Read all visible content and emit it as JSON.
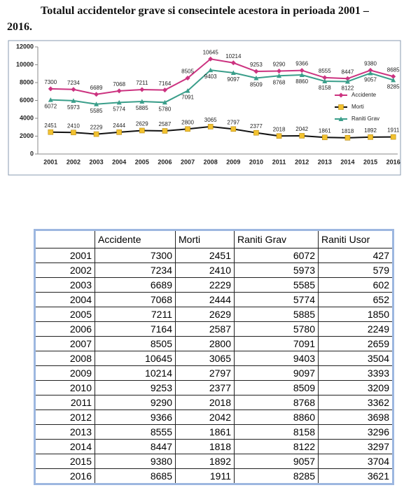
{
  "title": "Totalul accidentelor grave si consecintele acestora in perioada 2001 – 2016.",
  "chart_data": {
    "type": "line",
    "categories": [
      "2001",
      "2002",
      "2003",
      "2004",
      "2005",
      "2006",
      "2007",
      "2008",
      "2009",
      "2010",
      "2011",
      "2012",
      "2013",
      "2014",
      "2015",
      "2016"
    ],
    "series": [
      {
        "name": "Accidente",
        "color": "#cc3380",
        "marker": "diamond",
        "values": [
          7300,
          7234,
          6689,
          7068,
          7211,
          7164,
          8505,
          10645,
          10214,
          9253,
          9290,
          9366,
          8555,
          8447,
          9380,
          8685
        ]
      },
      {
        "name": "Morti",
        "color": "#111111",
        "marker_color": "#f2c230",
        "marker": "square",
        "values": [
          2451,
          2410,
          2229,
          2444,
          2629,
          2587,
          2800,
          3065,
          2797,
          2377,
          2018,
          2042,
          1861,
          1818,
          1892,
          1911
        ]
      },
      {
        "name": "Raniti Grav",
        "color": "#3a9e8a",
        "marker": "triangle",
        "values": [
          6072,
          5973,
          5585,
          5774,
          5885,
          5780,
          7091,
          9403,
          9097,
          8509,
          8768,
          8860,
          8158,
          8122,
          9057,
          8285
        ]
      }
    ],
    "ylim": [
      0,
      12000
    ],
    "yticks": [
      0,
      2000,
      4000,
      6000,
      8000,
      10000,
      12000
    ],
    "grid": false,
    "legend": "right"
  },
  "table": {
    "header": [
      "Accidente",
      "Morti",
      "Raniti Grav",
      "Raniti Usor"
    ],
    "rows": [
      [
        2001,
        7300,
        2451,
        6072,
        427
      ],
      [
        2002,
        7234,
        2410,
        5973,
        579
      ],
      [
        2003,
        6689,
        2229,
        5585,
        602
      ],
      [
        2004,
        7068,
        2444,
        5774,
        652
      ],
      [
        2005,
        7211,
        2629,
        5885,
        1850
      ],
      [
        2006,
        7164,
        2587,
        5780,
        2249
      ],
      [
        2007,
        8505,
        2800,
        7091,
        2659
      ],
      [
        2008,
        10645,
        3065,
        9403,
        3504
      ],
      [
        2009,
        10214,
        2797,
        9097,
        3393
      ],
      [
        2010,
        9253,
        2377,
        8509,
        3209
      ],
      [
        2011,
        9290,
        2018,
        8768,
        3362
      ],
      [
        2012,
        9366,
        2042,
        8860,
        3698
      ],
      [
        2013,
        8555,
        1861,
        8158,
        3296
      ],
      [
        2014,
        8447,
        1818,
        8122,
        3297
      ],
      [
        2015,
        9380,
        1892,
        9057,
        3704
      ],
      [
        2016,
        8685,
        1911,
        8285,
        3621
      ]
    ]
  }
}
